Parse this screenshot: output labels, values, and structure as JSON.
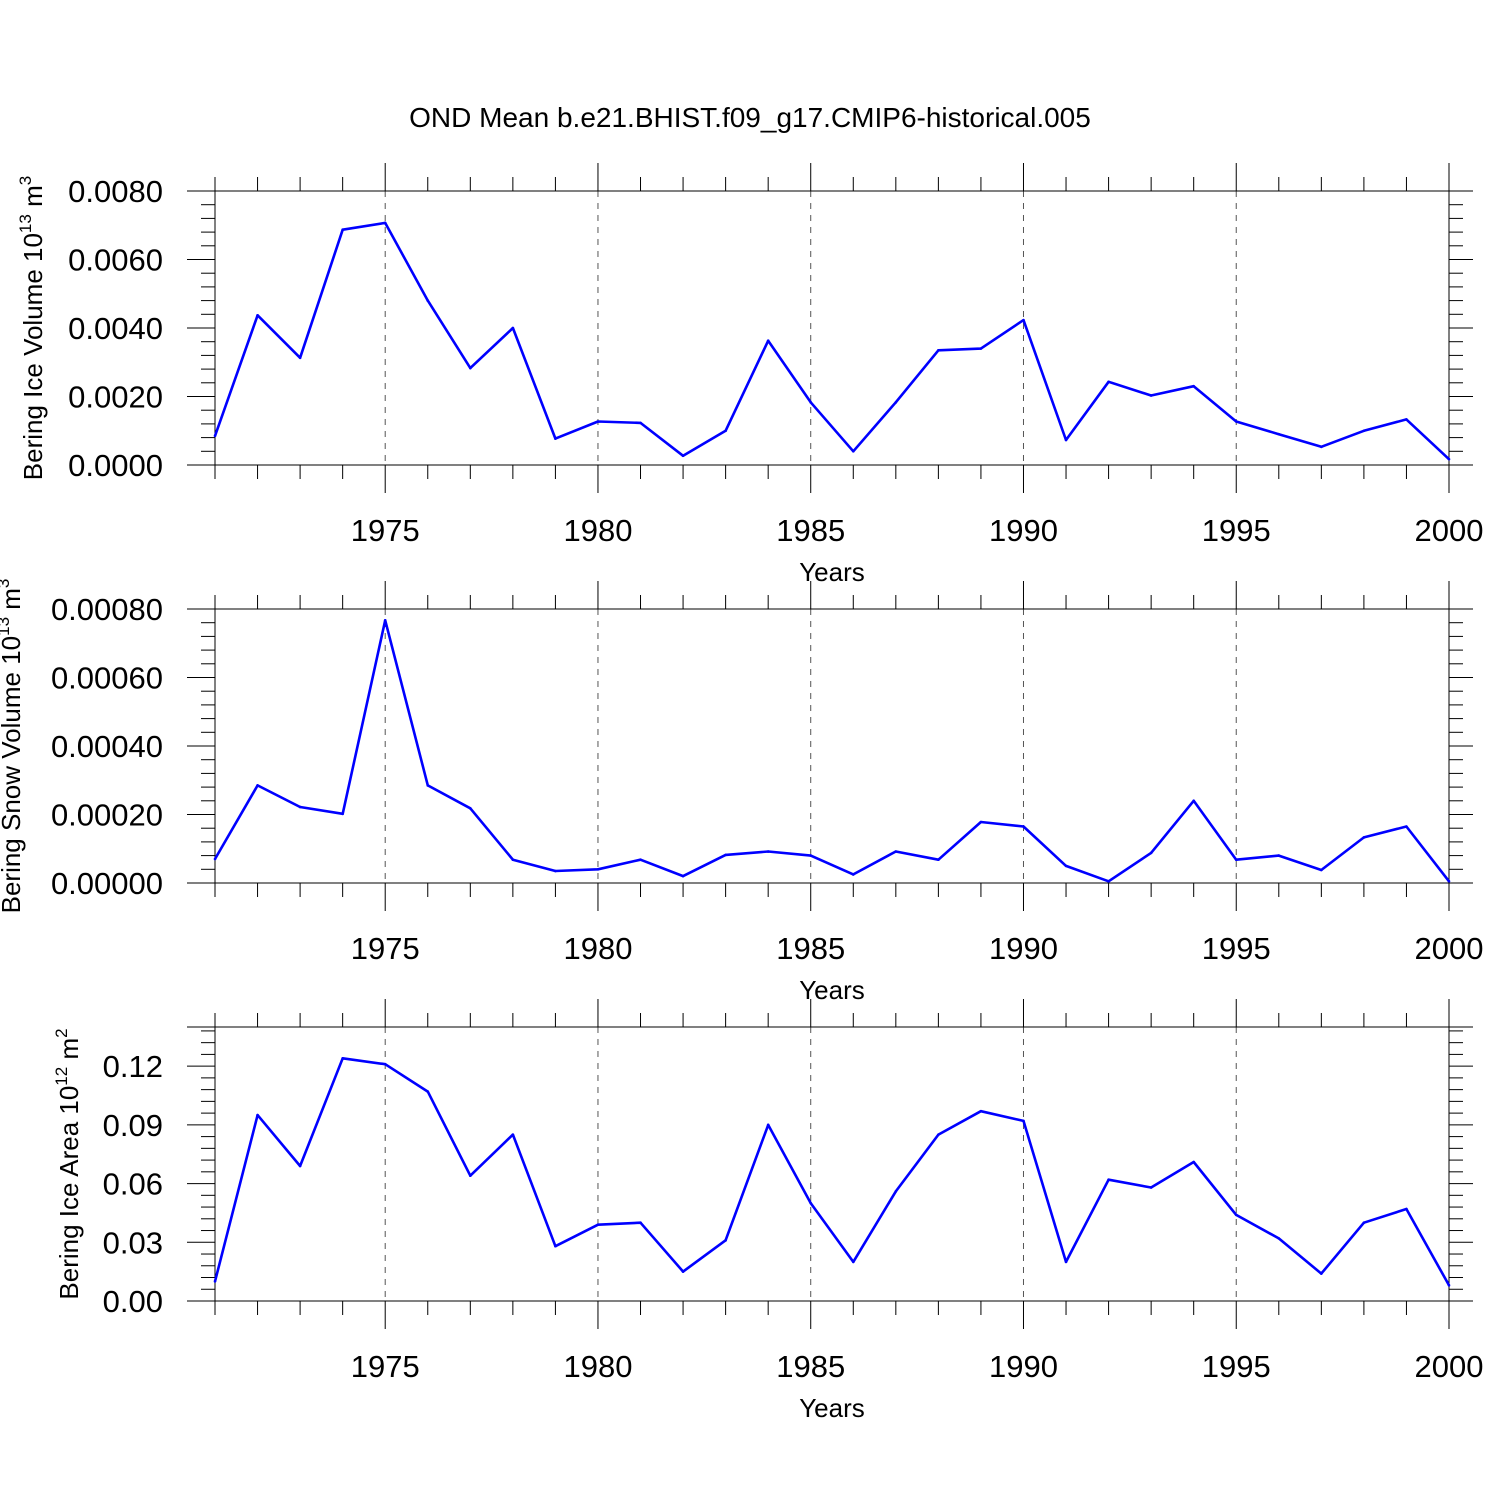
{
  "title": "OND Mean b.e21.BHIST.f09_g17.CMIP6-historical.005",
  "line_color": "#0000ff",
  "chart_data": [
    {
      "type": "line",
      "ylabel_main": "Bering Ice Volume 10",
      "ylabel_exp": "13",
      "ylabel_unit": " m",
      "ylabel_unit_exp": "3",
      "xlabel": "Years",
      "xlim": [
        1971,
        2000
      ],
      "ylim": [
        0,
        0.008
      ],
      "yticks": [
        0,
        0.002,
        0.004,
        0.006,
        0.008
      ],
      "ytick_labels": [
        "0.0000",
        "0.0020",
        "0.0040",
        "0.0060",
        "0.0080"
      ],
      "xticks": [
        1975,
        1980,
        1985,
        1990,
        1995,
        2000
      ],
      "xtick_labels": [
        "1975",
        "1980",
        "1985",
        "1990",
        "1995",
        "2000"
      ],
      "x": [
        1971,
        1972,
        1973,
        1974,
        1975,
        1976,
        1977,
        1978,
        1979,
        1980,
        1981,
        1982,
        1983,
        1984,
        1985,
        1986,
        1987,
        1988,
        1989,
        1990,
        1991,
        1992,
        1993,
        1994,
        1995,
        1996,
        1997,
        1998,
        1999,
        2000
      ],
      "values": [
        0.00085,
        0.00437,
        0.00313,
        0.00687,
        0.00707,
        0.0048,
        0.00283,
        0.004,
        0.00077,
        0.00127,
        0.00123,
        0.00027,
        0.001,
        0.00363,
        0.00183,
        0.0004,
        0.00183,
        0.00335,
        0.0034,
        0.00423,
        0.00073,
        0.00243,
        0.00203,
        0.0023,
        0.00127,
        0.0009,
        0.00053,
        0.001,
        0.00133,
        0.00017
      ]
    },
    {
      "type": "line",
      "ylabel_main": "Bering Snow Volume 10",
      "ylabel_exp": "13",
      "ylabel_unit": " m",
      "ylabel_unit_exp": "3",
      "xlabel": "Years",
      "xlim": [
        1971,
        2000
      ],
      "ylim": [
        0,
        0.0008
      ],
      "yticks": [
        0,
        0.0002,
        0.0004,
        0.0006,
        0.0008
      ],
      "ytick_labels": [
        "0.00000",
        "0.00020",
        "0.00040",
        "0.00060",
        "0.00080"
      ],
      "xticks": [
        1975,
        1980,
        1985,
        1990,
        1995,
        2000
      ],
      "xtick_labels": [
        "1975",
        "1980",
        "1985",
        "1990",
        "1995",
        "2000"
      ],
      "x": [
        1971,
        1972,
        1973,
        1974,
        1975,
        1976,
        1977,
        1978,
        1979,
        1980,
        1981,
        1982,
        1983,
        1984,
        1985,
        1986,
        1987,
        1988,
        1989,
        1990,
        1991,
        1992,
        1993,
        1994,
        1995,
        1996,
        1997,
        1998,
        1999,
        2000
      ],
      "values": [
        7e-05,
        0.000285,
        0.000222,
        0.000202,
        0.000767,
        0.000285,
        0.000218,
        6.8e-05,
        3.5e-05,
        4e-05,
        6.8e-05,
        2e-05,
        8.2e-05,
        9.2e-05,
        8e-05,
        2.5e-05,
        9.2e-05,
        6.8e-05,
        0.000178,
        0.000165,
        5e-05,
        5e-06,
        8.8e-05,
        0.00024,
        6.8e-05,
        8e-05,
        3.8e-05,
        0.000133,
        0.000165,
        5e-06
      ]
    },
    {
      "type": "line",
      "ylabel_main": "Bering Ice Area 10",
      "ylabel_exp": "12",
      "ylabel_unit": " m",
      "ylabel_unit_exp": "2",
      "xlabel": "Years",
      "xlim": [
        1971,
        2000
      ],
      "ylim": [
        0,
        0.14
      ],
      "yticks": [
        0,
        0.03,
        0.06,
        0.09,
        0.12
      ],
      "ytick_labels": [
        "0.00",
        "0.03",
        "0.06",
        "0.09",
        "0.12"
      ],
      "xticks": [
        1975,
        1980,
        1985,
        1990,
        1995,
        2000
      ],
      "xtick_labels": [
        "1975",
        "1980",
        "1985",
        "1990",
        "1995",
        "2000"
      ],
      "x": [
        1971,
        1972,
        1973,
        1974,
        1975,
        1976,
        1977,
        1978,
        1979,
        1980,
        1981,
        1982,
        1983,
        1984,
        1985,
        1986,
        1987,
        1988,
        1989,
        1990,
        1991,
        1992,
        1993,
        1994,
        1995,
        1996,
        1997,
        1998,
        1999,
        2000
      ],
      "values": [
        0.01,
        0.095,
        0.069,
        0.124,
        0.121,
        0.107,
        0.064,
        0.085,
        0.028,
        0.039,
        0.04,
        0.015,
        0.031,
        0.09,
        0.05,
        0.02,
        0.056,
        0.085,
        0.097,
        0.092,
        0.02,
        0.062,
        0.058,
        0.071,
        0.044,
        0.032,
        0.014,
        0.04,
        0.047,
        0.008
      ]
    }
  ]
}
